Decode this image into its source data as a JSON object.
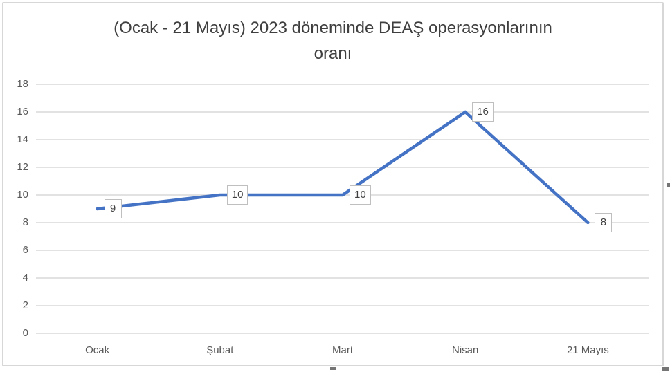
{
  "chart_data": {
    "type": "line",
    "title": "(Ocak - 21 Mayıs) 2023 döneminde DEAŞ operasyonlarının oranı",
    "title_lines": [
      "(Ocak - 21 Mayıs) 2023 döneminde DEAŞ operasyonlarının",
      "oranı"
    ],
    "categories": [
      "Ocak",
      "Şubat",
      "Mart",
      "Nisan",
      "21 Mayıs"
    ],
    "values": [
      9,
      10,
      10,
      16,
      8
    ],
    "data_labels": [
      9,
      10,
      10,
      16,
      8
    ],
    "xlabel": "",
    "ylabel": "",
    "ylim": [
      0,
      18
    ],
    "ytick_step": 2,
    "yticks": [
      0,
      2,
      4,
      6,
      8,
      10,
      12,
      14,
      16,
      18
    ],
    "grid": true,
    "legend": false,
    "line_color": "#4472C4",
    "gridline_color": "#d9d9d9",
    "tick_label_color": "#595959",
    "title_color": "#3f3f3f",
    "data_label_border_color": "#bfbfbf"
  }
}
